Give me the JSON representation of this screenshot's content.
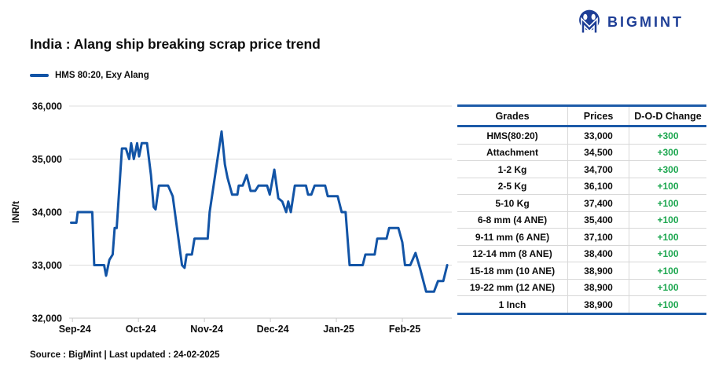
{
  "logo": {
    "brand": "BIGMINT",
    "color": "#1E3E96"
  },
  "title": "India : Alang ship breaking scrap price trend",
  "legend": {
    "label": "HMS 80:20, Exy Alang",
    "color": "#1254A6"
  },
  "source_note": "Source : BigMint | Last updated : 24-02-2025",
  "chart_data": {
    "type": "line",
    "title": "India : Alang ship breaking scrap price trend",
    "series_name": "HMS 80:20, Exy Alang",
    "ylabel": "INR/t",
    "ylim": [
      32000,
      36000
    ],
    "ytick_interval": 1000,
    "ytick_labels": [
      "32,000",
      "33,000",
      "34,000",
      "35,000",
      "36,000"
    ],
    "xtick_labels": [
      "Sep-24",
      "Oct-24",
      "Nov-24",
      "Dec-24",
      "Jan-25",
      "Feb-25"
    ],
    "x_unit": "months (0 = Sep-24 tick, 5 = Feb-25 tick)",
    "line_color": "#1254A6",
    "grid": true,
    "legend_position": "top-left",
    "points": [
      [
        -0.02,
        33800
      ],
      [
        0.06,
        33800
      ],
      [
        0.08,
        34000
      ],
      [
        0.3,
        34000
      ],
      [
        0.33,
        33000
      ],
      [
        0.48,
        33000
      ],
      [
        0.51,
        32800
      ],
      [
        0.56,
        33100
      ],
      [
        0.61,
        33200
      ],
      [
        0.64,
        33700
      ],
      [
        0.67,
        33700
      ],
      [
        0.75,
        35200
      ],
      [
        0.81,
        35200
      ],
      [
        0.86,
        35000
      ],
      [
        0.89,
        35300
      ],
      [
        0.93,
        35000
      ],
      [
        0.98,
        35300
      ],
      [
        1.01,
        35050
      ],
      [
        1.05,
        35300
      ],
      [
        1.13,
        35300
      ],
      [
        1.19,
        34700
      ],
      [
        1.23,
        34100
      ],
      [
        1.26,
        34050
      ],
      [
        1.31,
        34500
      ],
      [
        1.45,
        34500
      ],
      [
        1.52,
        34300
      ],
      [
        1.66,
        33000
      ],
      [
        1.7,
        32950
      ],
      [
        1.73,
        33200
      ],
      [
        1.81,
        33200
      ],
      [
        1.85,
        33500
      ],
      [
        2.05,
        33500
      ],
      [
        2.08,
        34000
      ],
      [
        2.26,
        35520
      ],
      [
        2.31,
        34900
      ],
      [
        2.35,
        34650
      ],
      [
        2.42,
        34330
      ],
      [
        2.5,
        34330
      ],
      [
        2.52,
        34500
      ],
      [
        2.58,
        34500
      ],
      [
        2.64,
        34700
      ],
      [
        2.7,
        34400
      ],
      [
        2.77,
        34400
      ],
      [
        2.82,
        34500
      ],
      [
        2.95,
        34500
      ],
      [
        2.99,
        34330
      ],
      [
        3.06,
        34800
      ],
      [
        3.12,
        34260
      ],
      [
        3.18,
        34200
      ],
      [
        3.24,
        34000
      ],
      [
        3.27,
        34200
      ],
      [
        3.31,
        34000
      ],
      [
        3.37,
        34500
      ],
      [
        3.54,
        34500
      ],
      [
        3.57,
        34330
      ],
      [
        3.62,
        34330
      ],
      [
        3.67,
        34500
      ],
      [
        3.83,
        34500
      ],
      [
        3.87,
        34300
      ],
      [
        4.02,
        34300
      ],
      [
        4.08,
        34000
      ],
      [
        4.14,
        34000
      ],
      [
        4.2,
        33000
      ],
      [
        4.4,
        33000
      ],
      [
        4.44,
        33200
      ],
      [
        4.58,
        33200
      ],
      [
        4.62,
        33500
      ],
      [
        4.76,
        33500
      ],
      [
        4.8,
        33700
      ],
      [
        4.94,
        33700
      ],
      [
        5.0,
        33430
      ],
      [
        5.04,
        33000
      ],
      [
        5.12,
        33000
      ],
      [
        5.2,
        33230
      ],
      [
        5.27,
        32930
      ],
      [
        5.36,
        32500
      ],
      [
        5.48,
        32500
      ],
      [
        5.54,
        32700
      ],
      [
        5.62,
        32700
      ],
      [
        5.68,
        33000
      ]
    ]
  },
  "table": {
    "headers": [
      "Grades",
      "Prices",
      "D-O-D Change"
    ],
    "accent_color": "#1D5BA8",
    "change_color": "#1DA750",
    "rows": [
      {
        "grade": "HMS(80:20)",
        "price": "33,000",
        "change": "+300"
      },
      {
        "grade": "Attachment",
        "price": "34,500",
        "change": "+300"
      },
      {
        "grade": "1-2 Kg",
        "price": "34,700",
        "change": "+300"
      },
      {
        "grade": "2-5 Kg",
        "price": "36,100",
        "change": "+100"
      },
      {
        "grade": "5-10 Kg",
        "price": "37,400",
        "change": "+100"
      },
      {
        "grade": "6-8 mm (4 ANE)",
        "price": "35,400",
        "change": "+100"
      },
      {
        "grade": "9-11 mm (6 ANE)",
        "price": "37,100",
        "change": "+100"
      },
      {
        "grade": "12-14 mm (8 ANE)",
        "price": "38,400",
        "change": "+100"
      },
      {
        "grade": "15-18 mm (10 ANE)",
        "price": "38,900",
        "change": "+100"
      },
      {
        "grade": "19-22 mm (12 ANE)",
        "price": "38,900",
        "change": "+100"
      },
      {
        "grade": "1 Inch",
        "price": "38,900",
        "change": "+100"
      }
    ]
  }
}
